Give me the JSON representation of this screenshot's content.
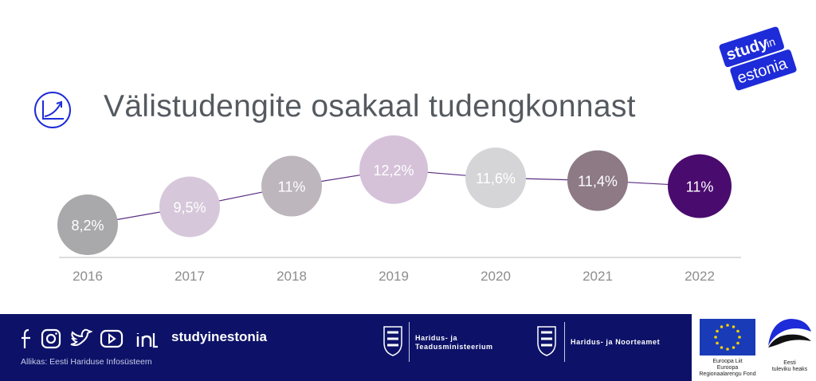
{
  "title": "Välistudengite osakaal tudengkonnast",
  "logo": {
    "line1": "study",
    "line2": "in",
    "line3": "estonia",
    "color": "#1e2bd8"
  },
  "chart_data": {
    "type": "scatter",
    "categories": [
      "2016",
      "2017",
      "2018",
      "2019",
      "2020",
      "2021",
      "2022"
    ],
    "values": [
      8.2,
      9.5,
      11,
      12.2,
      11.6,
      11.4,
      11
    ],
    "labels": [
      "8,2%",
      "9,5%",
      "11%",
      "12,2%",
      "11,6%",
      "11,4%",
      "11%"
    ],
    "colors": [
      "#a9a9ab",
      "#d6c8da",
      "#bdb6bd",
      "#d5c2d9",
      "#d5d5d7",
      "#8d7a85",
      "#4a0b6e"
    ],
    "line_color": "#5a2d82",
    "grid": false,
    "legend": "none"
  },
  "footer": {
    "brand": "studyinestonia",
    "source": "Allikas: Eesti Hariduse Infosüsteem",
    "ministry1": [
      "Haridus- ja",
      "Teadusministeerium"
    ],
    "ministry2": "Haridus- ja Noorteamet",
    "eu_text": [
      "Euroopa Liit",
      "Euroopa",
      "Regionaalarengu Fond"
    ],
    "ee_text": [
      "Eesti",
      "tuleviku heaks"
    ],
    "social_icons": [
      "facebook-icon",
      "instagram-icon",
      "twitter-icon",
      "youtube-icon",
      "linkedin-icon"
    ]
  }
}
